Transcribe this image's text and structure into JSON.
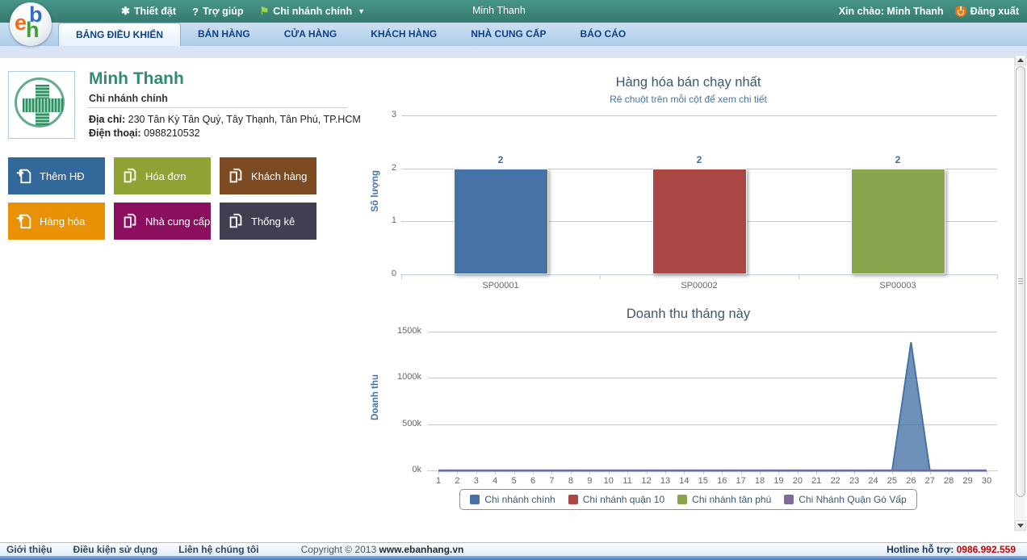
{
  "topbar": {
    "settings": "Thiết đặt",
    "help": "Trợ giúp",
    "branch_selector": "Chi nhánh chính",
    "center_user": "Minh Thanh",
    "greeting": "Xin chào: Minh Thanh",
    "logout": "Đăng xuất"
  },
  "logo": {
    "e": "e",
    "b": "b",
    "h": "h"
  },
  "tabs": [
    "BẢNG ĐIỀU KHIỂN",
    "BÁN HÀNG",
    "CỬA HÀNG",
    "KHÁCH HÀNG",
    "NHÀ CUNG CẤP",
    "BÁO CÁO"
  ],
  "active_tab": "BẢNG ĐIỀU KHIỂN",
  "profile": {
    "name": "Minh Thanh",
    "branch": "Chi nhánh chính",
    "address_label": "Địa chỉ:",
    "address": "230 Tân Kỳ Tân Quý, Tây Thạnh, Tân Phú, TP.HCM",
    "phone_label": "Điện thoại:",
    "phone": "0988210532"
  },
  "quick_actions": [
    {
      "label": "Thêm HĐ",
      "color": "#33689b",
      "icon": "add-document-icon"
    },
    {
      "label": "Hóa đơn",
      "color": "#8ea333",
      "icon": "copy-document-icon"
    },
    {
      "label": "Khách hàng",
      "color": "#7c4b22",
      "icon": "copy-document-icon"
    },
    {
      "label": "Hàng hóa",
      "color": "#e89104",
      "icon": "add-document-icon"
    },
    {
      "label": "Nhà cung cấp",
      "color": "#8c0e5e",
      "icon": "copy-document-icon"
    },
    {
      "label": "Thống kê",
      "color": "#413e52",
      "icon": "copy-document-icon"
    }
  ],
  "chart_data": [
    {
      "type": "bar",
      "title": "Hàng hóa bán chạy nhất",
      "subtitle": "Rê chuột trên mỗi cột để xem chi tiết",
      "categories": [
        "SP00001",
        "SP00002",
        "SP00003"
      ],
      "values": [
        2,
        2,
        2
      ],
      "bar_colors": [
        "#4572A7",
        "#AA4643",
        "#89A54E"
      ],
      "xlabel": "",
      "ylabel": "Số lượng",
      "yticks": [
        0,
        1,
        2,
        3
      ],
      "ylim": [
        0,
        3
      ],
      "grid": true
    },
    {
      "type": "area",
      "title": "Doanh thu tháng này",
      "xlabel": "",
      "ylabel": "Doanh thu",
      "unit": "k",
      "yticks_values": [
        0,
        500,
        1000,
        1500
      ],
      "yticks_labels": [
        "0k",
        "500k",
        "1000k",
        "1500k"
      ],
      "ylim": [
        0,
        1500
      ],
      "x": [
        1,
        2,
        3,
        4,
        5,
        6,
        7,
        8,
        9,
        10,
        11,
        12,
        13,
        14,
        15,
        16,
        17,
        18,
        19,
        20,
        21,
        22,
        23,
        24,
        25,
        26,
        27,
        28,
        29,
        30
      ],
      "series": [
        {
          "name": "Chi nhánh chính",
          "color": "#4572A7",
          "values": [
            0,
            0,
            0,
            0,
            0,
            0,
            0,
            0,
            0,
            0,
            0,
            0,
            0,
            0,
            0,
            0,
            0,
            0,
            0,
            0,
            0,
            0,
            0,
            0,
            0,
            1390,
            0,
            0,
            0,
            0
          ]
        },
        {
          "name": "Chi nhánh quận 10",
          "color": "#AA4643",
          "values": [
            0,
            0,
            0,
            0,
            0,
            0,
            0,
            0,
            0,
            0,
            0,
            0,
            0,
            0,
            0,
            0,
            0,
            0,
            0,
            0,
            0,
            0,
            0,
            0,
            0,
            0,
            0,
            0,
            0,
            0
          ]
        },
        {
          "name": "Chi nhánh tân phú",
          "color": "#89A54E",
          "values": [
            0,
            0,
            0,
            0,
            0,
            0,
            0,
            0,
            0,
            0,
            0,
            0,
            0,
            0,
            0,
            0,
            0,
            0,
            0,
            0,
            0,
            0,
            0,
            0,
            0,
            0,
            0,
            0,
            0,
            0
          ]
        },
        {
          "name": "Chi Nhánh Quận Gò Vấp",
          "color": "#80699B",
          "values": [
            0,
            0,
            0,
            0,
            0,
            0,
            0,
            0,
            0,
            0,
            0,
            0,
            0,
            0,
            0,
            0,
            0,
            0,
            0,
            0,
            0,
            0,
            0,
            0,
            0,
            0,
            0,
            0,
            0,
            0
          ]
        }
      ],
      "legend_position": "bottom"
    }
  ],
  "footer": {
    "links": [
      "Giới thiệu",
      "Điều kiện sử dụng",
      "Liên hệ chúng tôi"
    ],
    "copyright": "Copyright © 2013 ",
    "site": "www.ebanhang.vn",
    "hotline_label": "Hotline hỗ trợ: ",
    "hotline": "0986.992.559"
  },
  "icons": {
    "star": "✱",
    "question": "?",
    "flag": "⚑",
    "dropdown": "▼",
    "power": "power-icon (css circle)",
    "scroll_up": "triangle-up (css)",
    "scroll_down": "triangle-down (css)",
    "add_document": "page-with-plus (svg)",
    "copy_document": "stacked-pages (svg)"
  },
  "colors": {
    "topbar_teal": "#3b8a7d",
    "tab_text_navy": "#0b4288",
    "chart_title": "#3E576F",
    "accent_blue": "#4572A7",
    "hotline_red": "#cc0000"
  }
}
